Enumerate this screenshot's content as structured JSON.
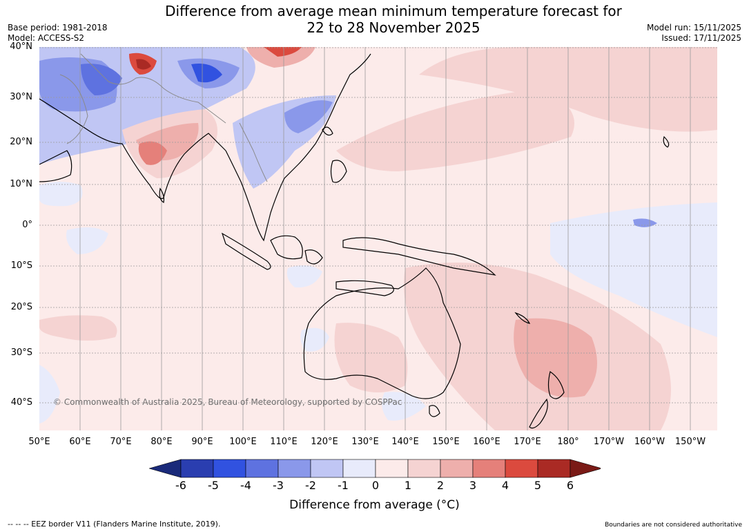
{
  "header": {
    "title_line1": "Difference from average mean minimum temperature forecast for",
    "title_line2": "22 to 28 November 2025",
    "base_period": "Base period: 1981-2018",
    "model": "Model: ACCESS-S2",
    "model_run": "Model run: 15/11/2025",
    "issued": "Issued: 17/11/2025"
  },
  "map": {
    "latitude_labels": [
      "40°N",
      "30°N",
      "20°N",
      "10°N",
      "0°",
      "10°S",
      "20°S",
      "30°S",
      "40°S"
    ],
    "longitude_labels": [
      "50°E",
      "60°E",
      "70°E",
      "80°E",
      "90°E",
      "100°E",
      "110°E",
      "120°E",
      "130°E",
      "140°E",
      "150°E",
      "160°E",
      "170°E",
      "180°",
      "170°W",
      "160°W",
      "150°W"
    ],
    "copyright": "© Commonwealth of Australia 2025, Bureau of Meteorology, supported by COSPPac"
  },
  "legend": {
    "label": "Difference from average (°C)",
    "ticks": [
      "-6",
      "-5",
      "-4",
      "-3",
      "-2",
      "-1",
      "0",
      "1",
      "2",
      "3",
      "4",
      "5",
      "6"
    ],
    "colors": [
      "#1a2a7a",
      "#2a3eb0",
      "#3152e0",
      "#5e72e0",
      "#8a98ea",
      "#c0c6f4",
      "#e8ebfb",
      "#fcebea",
      "#f5d3d2",
      "#eeafac",
      "#e5807a",
      "#db4a3e",
      "#aa2a24",
      "#7a1a16"
    ]
  },
  "footer": {
    "eez_note": "--  --  -- EEZ border V11 (Flanders Marine Institute, 2019).",
    "disclaimer": "Boundaries are not considered authoritative"
  }
}
